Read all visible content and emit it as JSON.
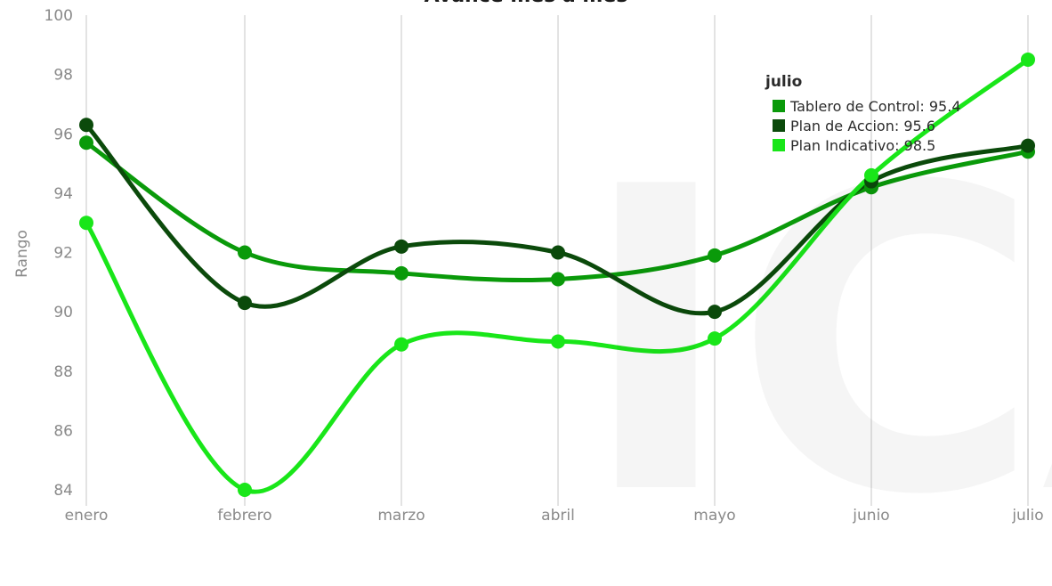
{
  "chart_data": {
    "type": "line",
    "title": "Avance mes a mes",
    "xlabel": "",
    "ylabel": "Rango",
    "ylim": [
      84,
      100
    ],
    "y_ticks": [
      84,
      86,
      88,
      90,
      92,
      94,
      96,
      98,
      100
    ],
    "categories": [
      "enero",
      "febrero",
      "marzo",
      "abril",
      "mayo",
      "junio",
      "julio"
    ],
    "grid": true,
    "series": [
      {
        "name": "Tablero de Control",
        "color": "#0a9a0a",
        "values": [
          95.7,
          92.0,
          91.3,
          91.1,
          91.9,
          94.2,
          95.4
        ]
      },
      {
        "name": "Plan de Accion",
        "color": "#0b4a0b",
        "values": [
          96.3,
          90.3,
          92.2,
          92.0,
          90.0,
          94.4,
          95.6
        ]
      },
      {
        "name": "Plan Indicativo",
        "color": "#19e619",
        "values": [
          93.0,
          84.0,
          88.9,
          89.0,
          89.1,
          94.6,
          98.5
        ]
      }
    ],
    "tooltip": {
      "title": "julio",
      "rows": [
        {
          "label": "Tablero de Control: 95.4",
          "color": "#0a9a0a"
        },
        {
          "label": "Plan de Accion: 95.6",
          "color": "#0b4a0b"
        },
        {
          "label": "Plan Indicativo: 98.5",
          "color": "#19e619"
        }
      ]
    },
    "watermark": "ICA"
  }
}
